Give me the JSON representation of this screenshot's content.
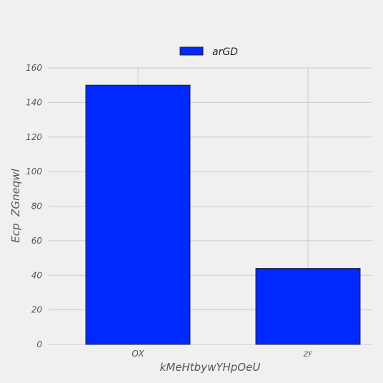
{
  "chart_data": {
    "type": "bar",
    "categories": [
      "OX",
      "ZF"
    ],
    "series": [
      {
        "name": "arGD",
        "values": [
          150,
          44
        ],
        "color": "#0029ff"
      }
    ],
    "title": "",
    "xlabel": "kMeHtbywYHpOeU",
    "ylabel": "Ecp  ZGneqwl",
    "ylim": [
      0,
      160
    ],
    "yticks": [
      0,
      20,
      40,
      60,
      80,
      100,
      120,
      140,
      160
    ],
    "grid": true,
    "legend": "top-center"
  }
}
